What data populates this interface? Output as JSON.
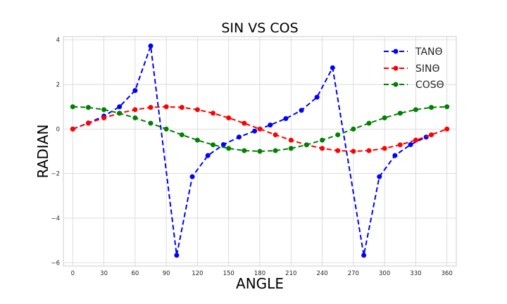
{
  "chart_data": {
    "type": "line",
    "title": "SIN VS COS",
    "xlabel": "ANGLE",
    "ylabel": "RADIAN",
    "xlim": [
      -9,
      369
    ],
    "ylim": [
      -6.15,
      4.15
    ],
    "x_ticks": [
      0,
      30,
      60,
      90,
      120,
      150,
      180,
      210,
      240,
      270,
      300,
      330,
      360
    ],
    "y_ticks": [
      4,
      2,
      0,
      -2,
      -4,
      -6
    ],
    "y_tick_labels": [
      "4",
      "2",
      "0",
      "−2",
      "−4",
      "−6"
    ],
    "grid": true,
    "legend_position": "top-right",
    "x": [
      0,
      15,
      30,
      45,
      60,
      75,
      100,
      115,
      130,
      145,
      160,
      175,
      190,
      205,
      220,
      235,
      250,
      265,
      280,
      295,
      310,
      325,
      340,
      360
    ],
    "series": [
      {
        "name": "TANΘ",
        "color": "#0000ff",
        "x": [
          0,
          15,
          30,
          45,
          60,
          75,
          100,
          115,
          130,
          145,
          160,
          175,
          190,
          205,
          220,
          235,
          250,
          280,
          295,
          310,
          325,
          340
        ],
        "values": [
          0,
          0.27,
          0.58,
          1.0,
          1.73,
          3.73,
          -5.67,
          -2.14,
          -1.19,
          -0.7,
          -0.36,
          -0.09,
          0.18,
          0.47,
          0.84,
          1.43,
          2.75,
          -5.67,
          -2.14,
          -1.19,
          -0.7,
          -0.36
        ]
      },
      {
        "name": "SINΘ",
        "color": "#ff0000",
        "x": [
          0,
          15,
          30,
          45,
          60,
          75,
          90,
          105,
          120,
          135,
          150,
          165,
          180,
          195,
          210,
          225,
          240,
          255,
          270,
          285,
          300,
          315,
          330,
          345,
          360
        ],
        "values": [
          0,
          0.26,
          0.5,
          0.71,
          0.87,
          0.97,
          1.0,
          0.97,
          0.87,
          0.71,
          0.5,
          0.26,
          0,
          -0.26,
          -0.5,
          -0.71,
          -0.87,
          -0.97,
          -1.0,
          -0.97,
          -0.87,
          -0.71,
          -0.5,
          -0.26,
          0
        ]
      },
      {
        "name": "COSΘ",
        "color": "#008000",
        "x": [
          0,
          15,
          30,
          45,
          60,
          75,
          90,
          105,
          120,
          135,
          150,
          165,
          180,
          195,
          210,
          225,
          240,
          255,
          270,
          285,
          300,
          315,
          330,
          345,
          360
        ],
        "values": [
          1.0,
          0.97,
          0.87,
          0.71,
          0.5,
          0.26,
          0,
          -0.26,
          -0.5,
          -0.71,
          -0.87,
          -0.97,
          -1.0,
          -0.97,
          -0.87,
          -0.71,
          -0.5,
          -0.26,
          0,
          0.26,
          0.5,
          0.71,
          0.87,
          0.97,
          1.0
        ]
      }
    ]
  }
}
